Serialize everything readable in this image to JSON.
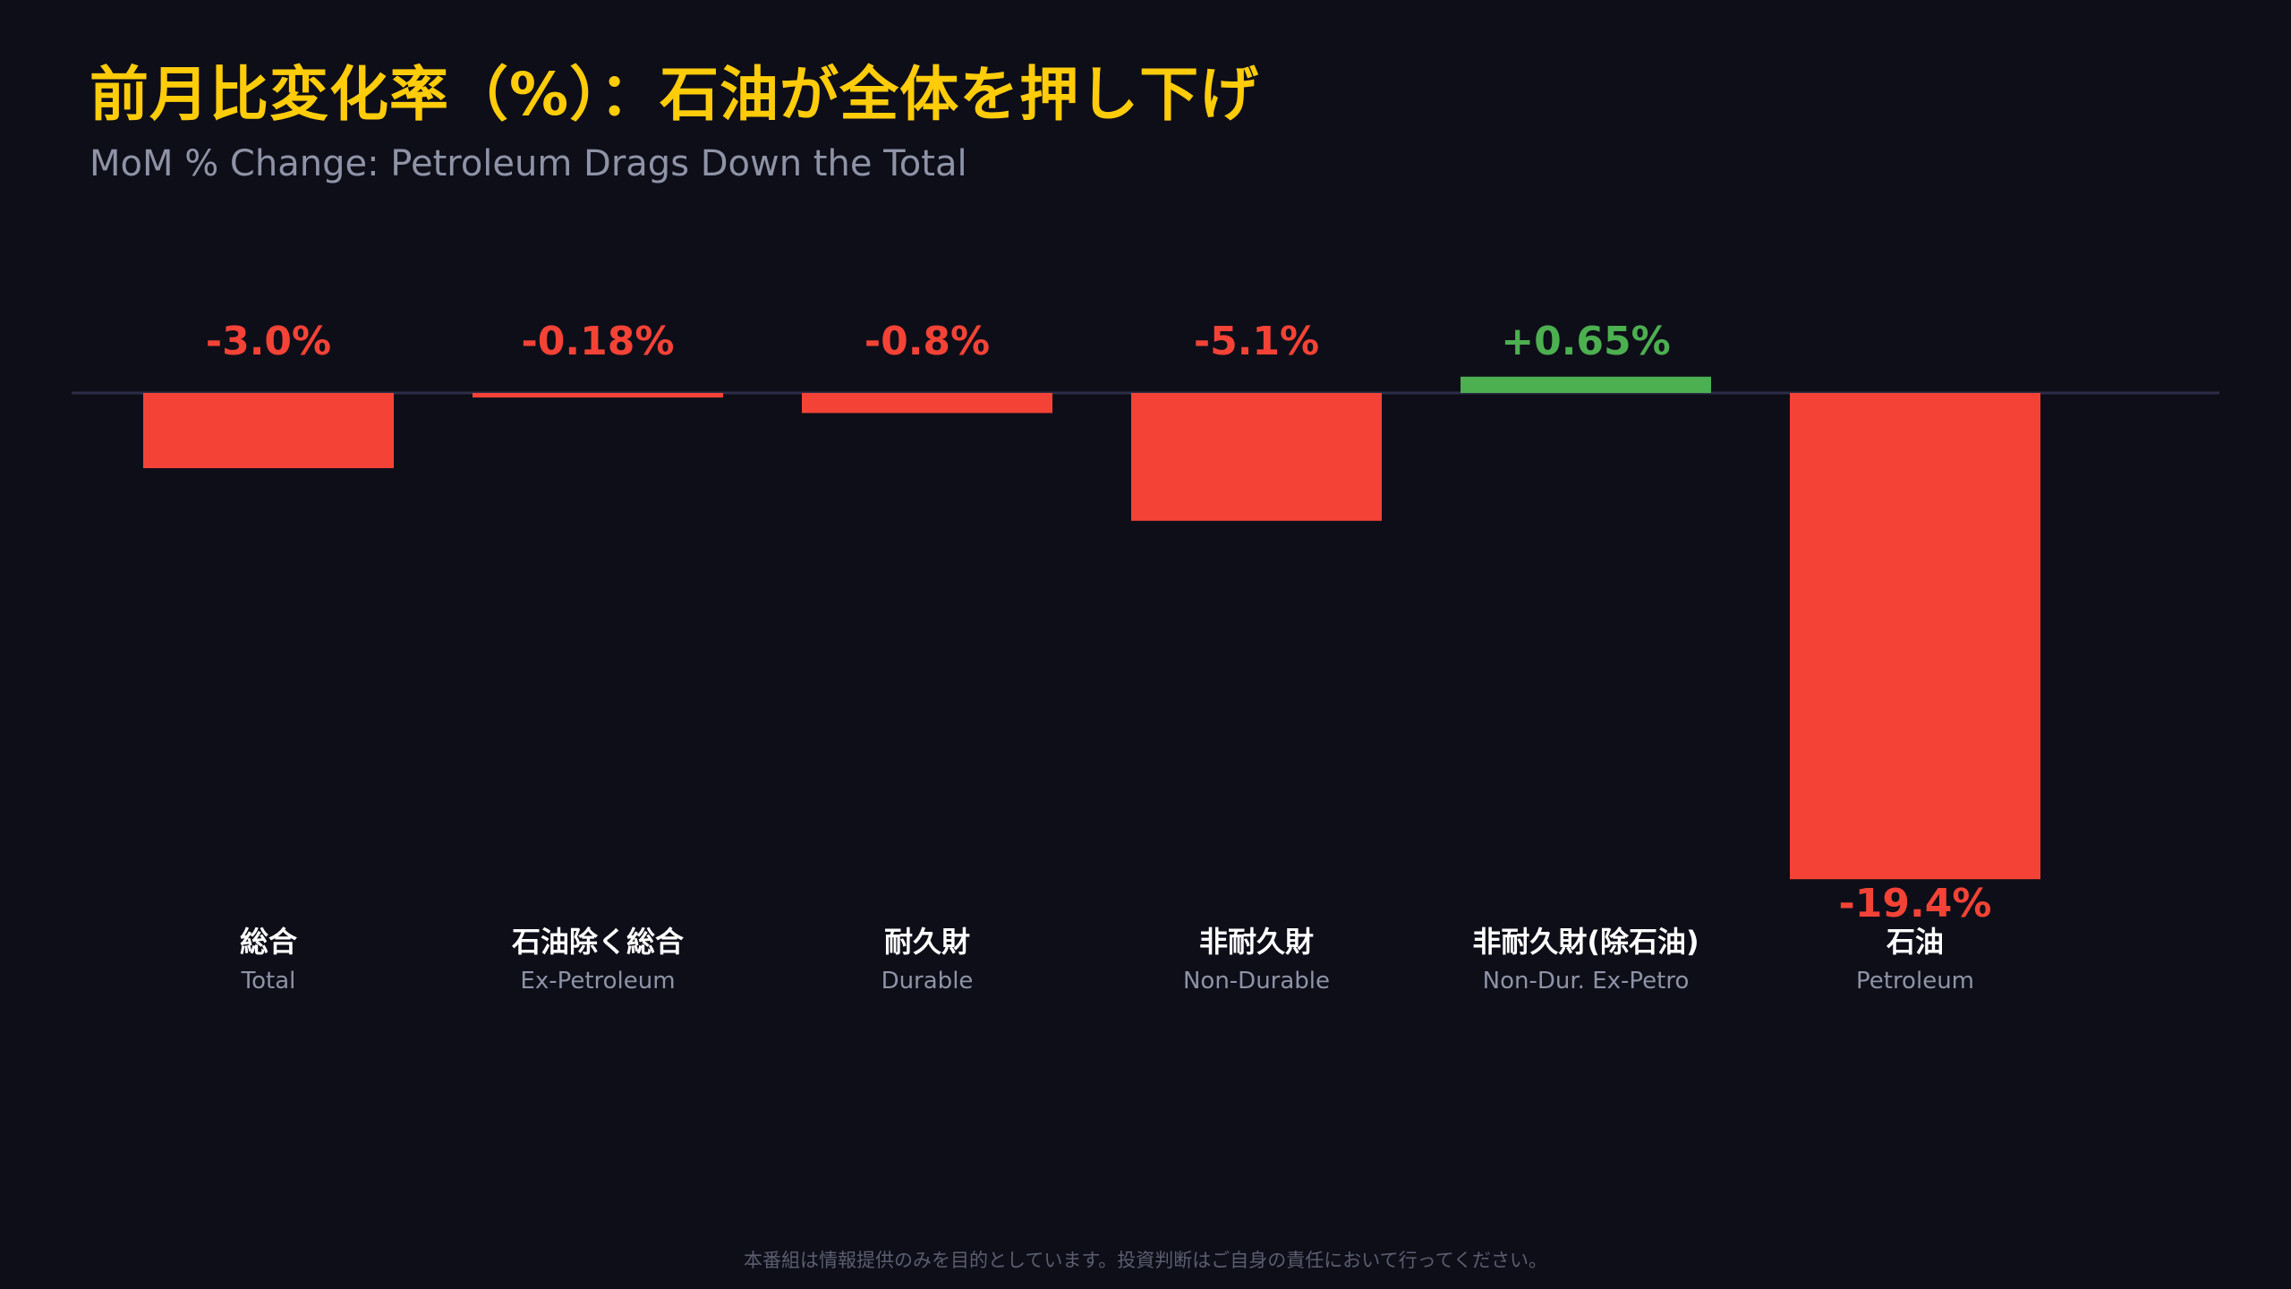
{
  "header": {
    "title": "前月比変化率（%）：石油が全体を押し下げ",
    "subtitle": "MoM % Change: Petroleum Drags Down the Total"
  },
  "footer": {
    "disclaimer": "本番組は情報提供のみを目的としています。投資判断はご自身の責任において行ってください。"
  },
  "colors": {
    "positive": "#4caf50",
    "negative": "#f44336",
    "baseline": "#2c2c48",
    "title": "#ffcc0a"
  },
  "chart_data": {
    "type": "bar",
    "title": "前月比変化率（%）：石油が全体を押し下げ",
    "subtitle": "MoM % Change: Petroleum Drags Down the Total",
    "categories": [
      "総合",
      "石油除く総合",
      "耐久財",
      "非耐久財",
      "非耐久財(除石油)",
      "石油"
    ],
    "categories_en": [
      "Total",
      "Ex-Petroleum",
      "Durable",
      "Non-Durable",
      "Non-Dur. Ex-Petro",
      "Petroleum"
    ],
    "values": [
      -3.0,
      -0.18,
      -0.8,
      -5.1,
      0.65,
      -19.4
    ],
    "value_labels": [
      "-3.0%",
      "-0.18%",
      "-0.8%",
      "-5.1%",
      "+0.65%",
      "-19.4%"
    ],
    "xlabel": "",
    "ylabel": "",
    "ylim": [
      -19.4,
      0.65
    ],
    "grid": false,
    "legend": "none"
  }
}
